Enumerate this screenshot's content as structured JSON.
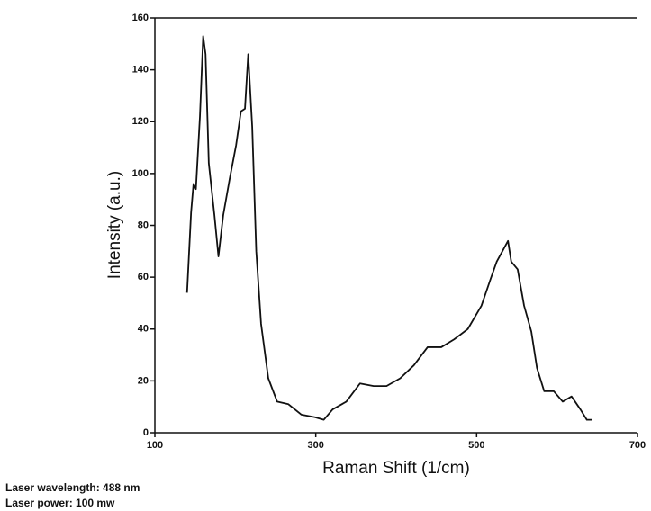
{
  "chart_data": {
    "type": "line",
    "x_label": "Raman Shift (1/cm)",
    "y_label": "Intensity (a.u.)",
    "annotations": [
      "Laser wavelength: 488 nm",
      "Laser power: 100 mw"
    ],
    "xlim": [
      100,
      700
    ],
    "xticks": [
      100,
      300,
      500,
      700
    ],
    "ylim": [
      0,
      160
    ],
    "yticks": [
      0,
      20,
      40,
      60,
      80,
      100,
      120,
      140,
      160
    ],
    "series": [
      {
        "color": "#111111",
        "x": [
          140,
          145,
          148,
          151,
          156,
          160,
          163,
          167,
          174,
          179,
          185,
          193,
          201,
          207,
          212,
          216,
          221,
          226,
          232,
          241,
          252,
          266,
          282,
          299,
          310,
          321,
          338,
          355,
          372,
          388,
          405,
          422,
          439,
          456,
          472,
          489,
          506,
          517,
          525,
          532,
          539,
          543,
          551,
          559,
          568,
          575,
          584,
          596,
          607,
          618,
          629,
          637,
          644
        ],
        "values": [
          54,
          85,
          96,
          94,
          122,
          153,
          146,
          104,
          84,
          68,
          84,
          98,
          111,
          124,
          125,
          146,
          118,
          70,
          42,
          21,
          12,
          11,
          7,
          6,
          5,
          9,
          12,
          19,
          18,
          18,
          21,
          26,
          33,
          33,
          36,
          40,
          49,
          59,
          66,
          70,
          74,
          66,
          63,
          49,
          39,
          25,
          16,
          16,
          12,
          14,
          9,
          5,
          5
        ]
      }
    ]
  }
}
